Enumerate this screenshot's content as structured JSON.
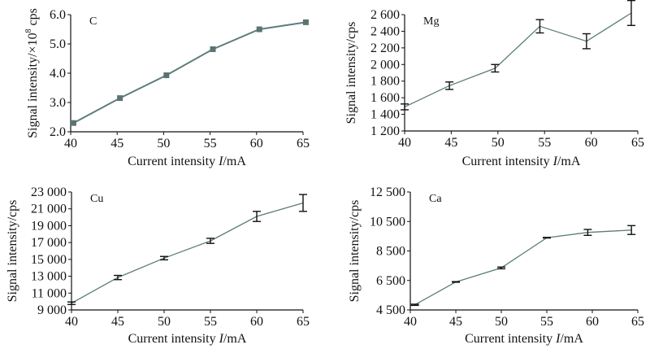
{
  "chart_data": [
    {
      "type": "line",
      "panel_label": "C",
      "xlabel": "Current intensity I/mA",
      "xlabel_parts": [
        "Current intensity ",
        "I",
        "/mA"
      ],
      "ylabel": "Signal intensity/×10^8 cps",
      "ylabel_parts": [
        "Signal intensity/×10",
        "8",
        " cps"
      ],
      "xlim": [
        40,
        65
      ],
      "ylim": [
        2.0,
        6.0
      ],
      "xticks": [
        40,
        45,
        50,
        55,
        60,
        65
      ],
      "xtick_labels": [
        "40",
        "45",
        "50",
        "55",
        "60",
        "65"
      ],
      "yticks": [
        2,
        3,
        4,
        5,
        6
      ],
      "ytick_labels": [
        "2.0",
        "3.0",
        "4.0",
        "5.0",
        "6.0"
      ],
      "marker": "square",
      "x": [
        40.3,
        45.3,
        50.3,
        55.3,
        60.3,
        65.3
      ],
      "y": [
        2.3,
        3.15,
        3.93,
        4.82,
        5.5,
        5.74
      ],
      "err": [
        0,
        0,
        0,
        0,
        0,
        0
      ]
    },
    {
      "type": "line",
      "panel_label": "Mg",
      "xlabel": "Current intensity I/mA",
      "xlabel_parts": [
        "Current intensity ",
        "I",
        "/mA"
      ],
      "ylabel": "Signal intensity/cps",
      "ylabel_parts": [
        "Signal intensity/cps",
        "",
        ""
      ],
      "xlim": [
        40,
        65
      ],
      "ylim": [
        1200,
        2600
      ],
      "xticks": [
        40,
        45,
        50,
        55,
        60,
        65
      ],
      "xtick_labels": [
        "40",
        "45",
        "50",
        "55",
        "60",
        "65"
      ],
      "yticks": [
        1200,
        1400,
        1600,
        1800,
        2000,
        2200,
        2400,
        2600
      ],
      "ytick_labels": [
        "1 200",
        "1 400",
        "1 600",
        "1 800",
        "2 000",
        "2 200",
        "2 400",
        "2 600"
      ],
      "marker": "none",
      "x": [
        40,
        44.8,
        49.7,
        54.5,
        59.5,
        64.3
      ],
      "y": [
        1490,
        1745,
        1955,
        2460,
        2280,
        2620
      ],
      "err": [
        35,
        45,
        45,
        80,
        90,
        150
      ]
    },
    {
      "type": "line",
      "panel_label": "Cu",
      "xlabel": "Current intensity I/mA",
      "xlabel_parts": [
        "Current intensity ",
        "I",
        "/mA"
      ],
      "ylabel": "Signal intensity/cps",
      "ylabel_parts": [
        "Signal intensity/cps",
        "",
        ""
      ],
      "xlim": [
        40,
        65
      ],
      "ylim": [
        9000,
        23000
      ],
      "xticks": [
        40,
        45,
        50,
        55,
        60,
        65
      ],
      "xtick_labels": [
        "40",
        "45",
        "50",
        "55",
        "60",
        "65"
      ],
      "yticks": [
        9000,
        11000,
        13000,
        15000,
        17000,
        19000,
        21000,
        23000
      ],
      "ytick_labels": [
        "9 000",
        "11 000",
        "13 000",
        "15 000",
        "17 000",
        "19 000",
        "21 000",
        "23 000"
      ],
      "marker": "none",
      "x": [
        40,
        45,
        50,
        55,
        60,
        65
      ],
      "y": [
        9800,
        12850,
        15150,
        17200,
        20100,
        21700
      ],
      "err": [
        150,
        250,
        200,
        300,
        600,
        1000
      ]
    },
    {
      "type": "line",
      "panel_label": "Ca",
      "xlabel": "Current intensity I/mA",
      "xlabel_parts": [
        "Current intensity ",
        "I",
        "/mA"
      ],
      "ylabel": "Signal intensity/cps",
      "ylabel_parts": [
        "Signal intensity/cps",
        "",
        ""
      ],
      "xlim": [
        40,
        65
      ],
      "ylim": [
        4500,
        12500
      ],
      "xticks": [
        40,
        45,
        50,
        55,
        60,
        65
      ],
      "xtick_labels": [
        "40",
        "45",
        "50",
        "55",
        "60",
        "65"
      ],
      "yticks": [
        4500,
        6500,
        8500,
        10500,
        12500
      ],
      "ytick_labels": [
        "4 500",
        "6 500",
        "8 500",
        "10 500",
        "12 500"
      ],
      "marker": "none",
      "x": [
        40.5,
        45,
        50,
        55,
        59.5,
        64.3
      ],
      "y": [
        4850,
        6400,
        7350,
        9400,
        9760,
        9920
      ],
      "err": [
        40,
        20,
        60,
        20,
        200,
        300
      ]
    }
  ],
  "colors": {
    "line": "#5b7d7b",
    "marker": "#5b7372",
    "axis": "#111111"
  }
}
